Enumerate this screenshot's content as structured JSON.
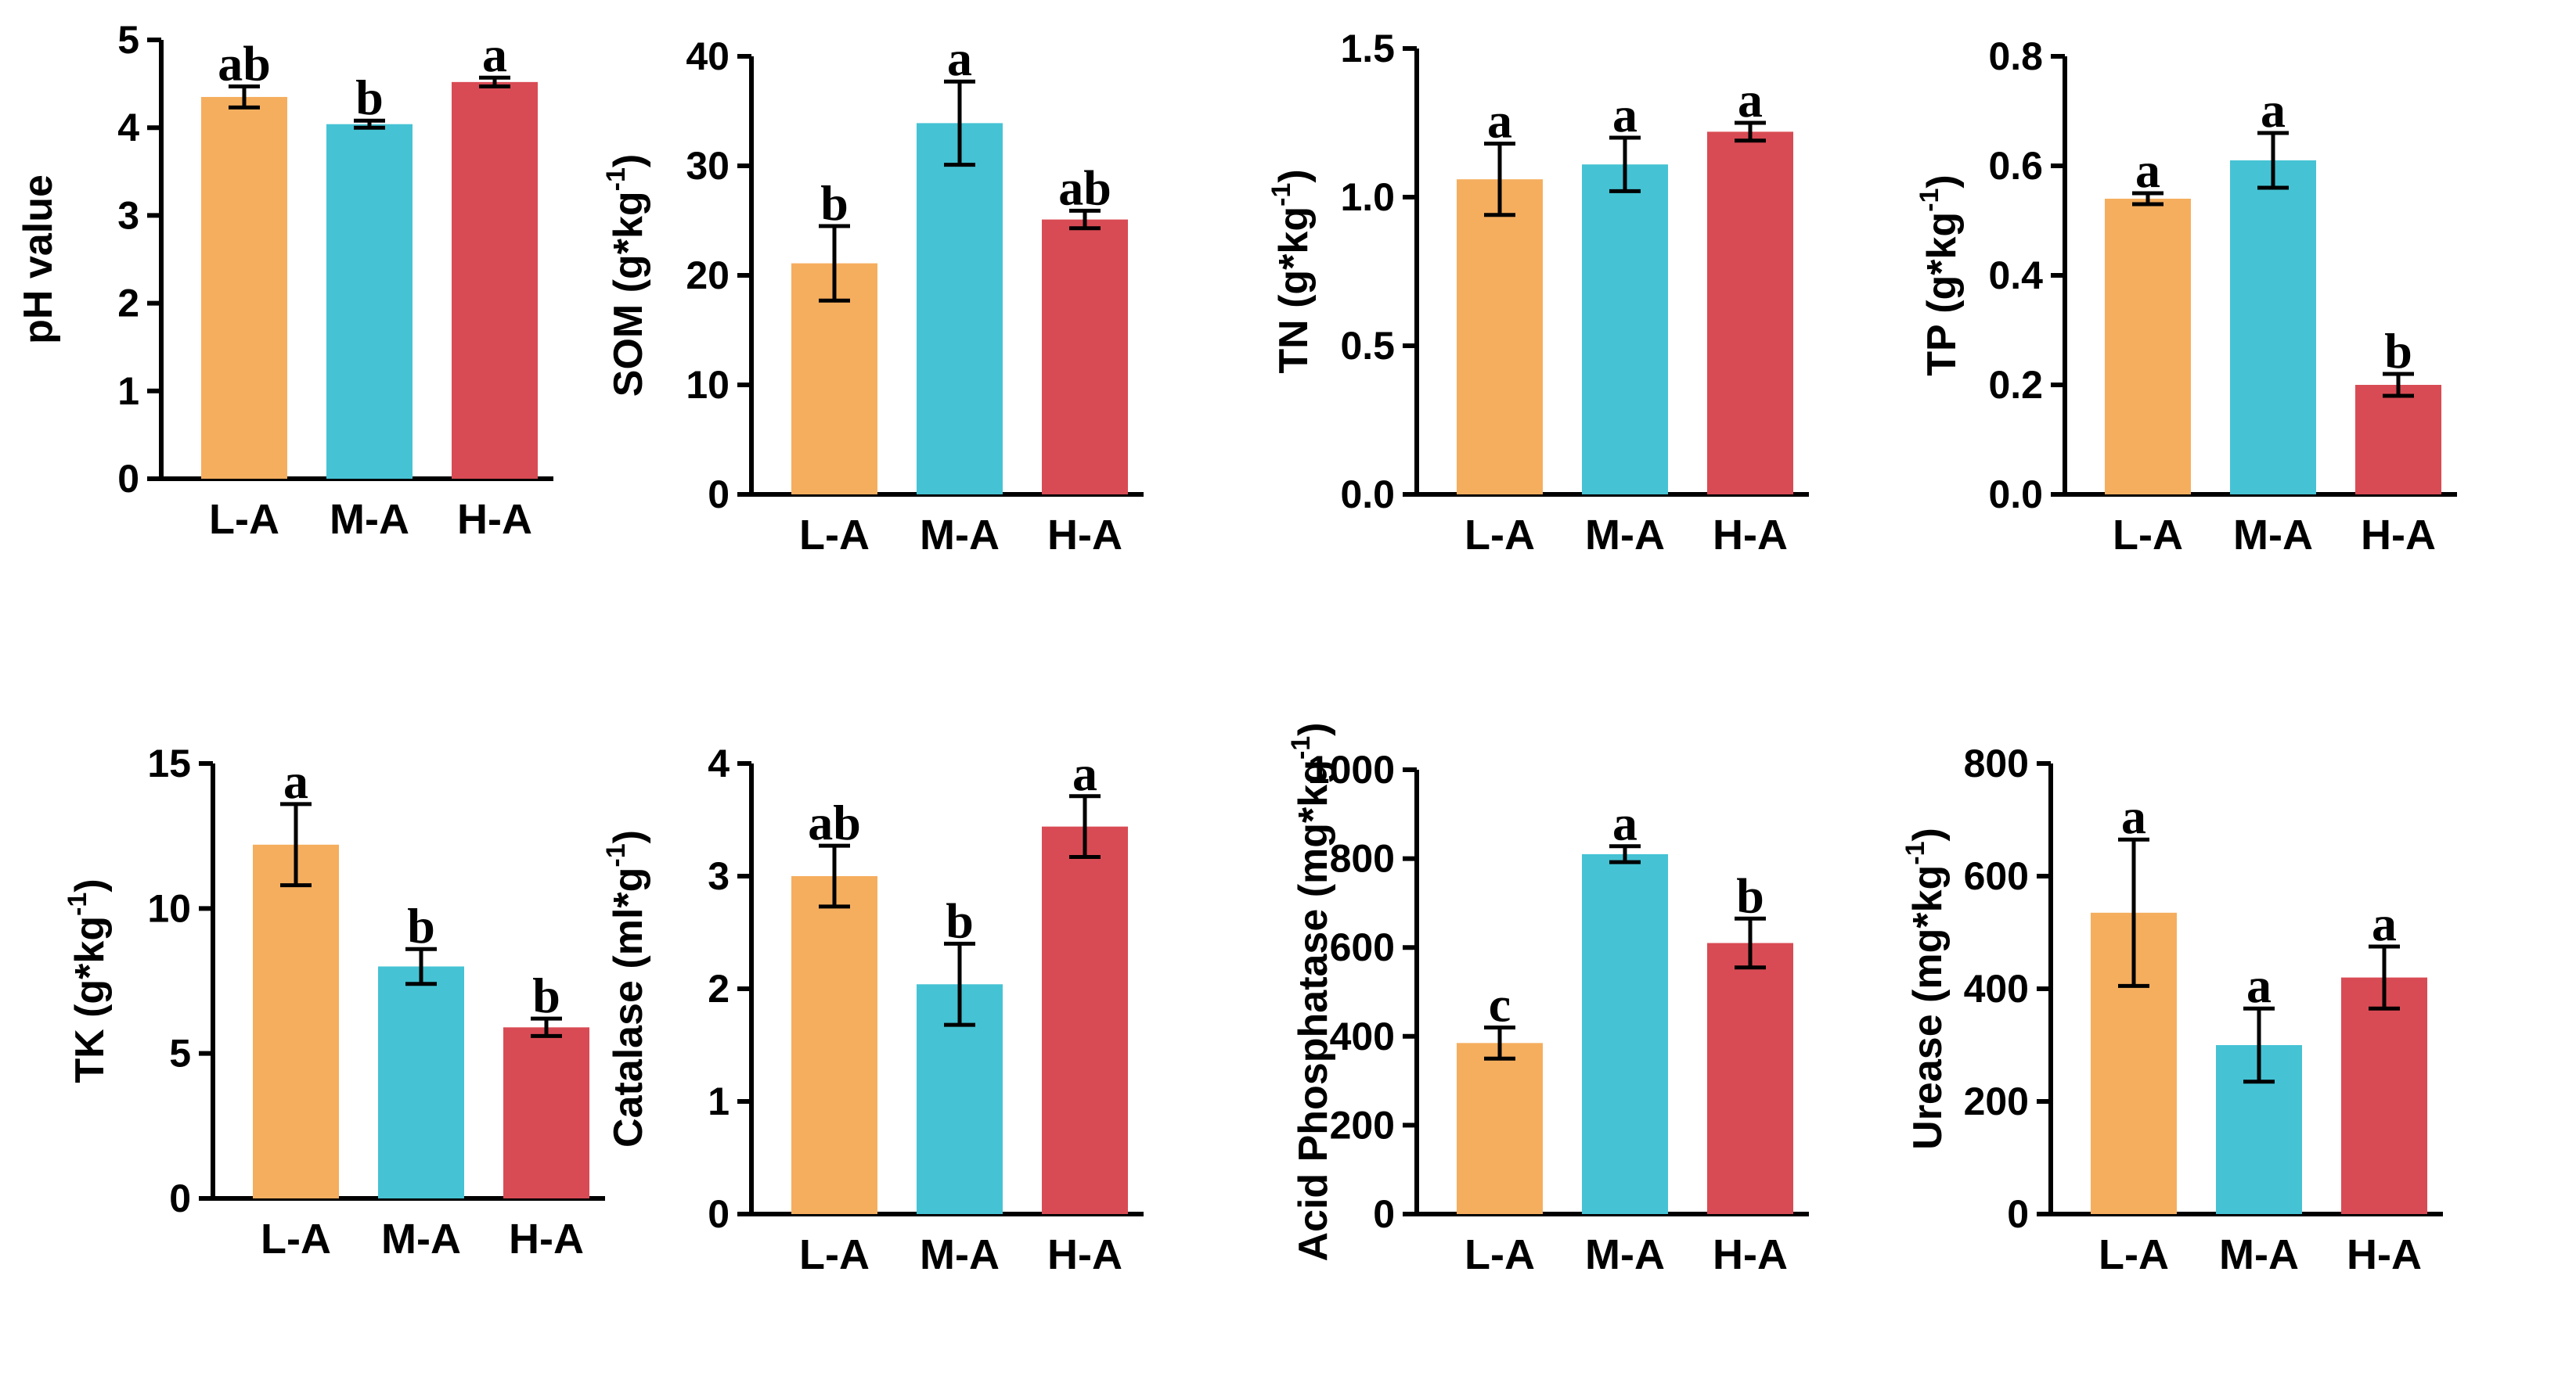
{
  "colors": {
    "L-A": "#f5ae5e",
    "M-A": "#45c3d4",
    "H-A": "#d94b54"
  },
  "chart_data": [
    {
      "type": "bar",
      "categories": [
        "L-A",
        "M-A",
        "H-A"
      ],
      "values": [
        4.35,
        4.04,
        4.52
      ],
      "errors": [
        0.12,
        0.04,
        0.05
      ],
      "letters": [
        "ab",
        "b",
        "a"
      ],
      "ylabel": "pH value",
      "ylim": [
        0,
        5
      ],
      "yticks": [
        "0",
        "1",
        "2",
        "3",
        "4",
        "5"
      ]
    },
    {
      "type": "bar",
      "categories": [
        "L-A",
        "M-A",
        "H-A"
      ],
      "values": [
        21.1,
        33.9,
        25.1
      ],
      "errors": [
        3.4,
        3.8,
        0.8
      ],
      "letters": [
        "b",
        "a",
        "ab"
      ],
      "ylabel": "SOM (g*kg",
      "ylabel_sup": "-1",
      "ylabel_end": ")",
      "ylim": [
        0,
        40
      ],
      "yticks": [
        "0",
        "10",
        "20",
        "30",
        "40"
      ]
    },
    {
      "type": "bar",
      "categories": [
        "L-A",
        "M-A",
        "H-A"
      ],
      "values": [
        1.06,
        1.11,
        1.22
      ],
      "errors": [
        0.12,
        0.09,
        0.03
      ],
      "letters": [
        "a",
        "a",
        "a"
      ],
      "ylabel": "TN (g*kg",
      "ylabel_sup": "-1",
      "ylabel_end": ")",
      "ylim": [
        0,
        1.5
      ],
      "yticks": [
        "0.0",
        "0.5",
        "1.0",
        "1.5"
      ]
    },
    {
      "type": "bar",
      "categories": [
        "L-A",
        "M-A",
        "H-A"
      ],
      "values": [
        0.54,
        0.61,
        0.2
      ],
      "errors": [
        0.01,
        0.05,
        0.02
      ],
      "letters": [
        "a",
        "a",
        "b"
      ],
      "ylabel": "TP (g*kg",
      "ylabel_sup": "-1",
      "ylabel_end": ")",
      "ylim": [
        0,
        0.8
      ],
      "yticks": [
        "0.0",
        "0.2",
        "0.4",
        "0.6",
        "0.8"
      ]
    },
    {
      "type": "bar",
      "categories": [
        "L-A",
        "M-A",
        "H-A"
      ],
      "values": [
        12.2,
        8.0,
        5.9
      ],
      "errors": [
        1.4,
        0.6,
        0.3
      ],
      "letters": [
        "a",
        "b",
        "b"
      ],
      "ylabel": "TK (g*kg",
      "ylabel_sup": "-1",
      "ylabel_end": ")",
      "ylim": [
        0,
        15
      ],
      "yticks": [
        "0",
        "5",
        "10",
        "15"
      ]
    },
    {
      "type": "bar",
      "categories": [
        "L-A",
        "M-A",
        "H-A"
      ],
      "values": [
        3.0,
        2.04,
        3.44
      ],
      "errors": [
        0.27,
        0.36,
        0.27
      ],
      "letters": [
        "ab",
        "b",
        "a"
      ],
      "ylabel": "Catalase (ml*g",
      "ylabel_sup": "-1",
      "ylabel_end": ")",
      "ylim": [
        0,
        4
      ],
      "yticks": [
        "0",
        "1",
        "2",
        "3",
        "4"
      ]
    },
    {
      "type": "bar",
      "categories": [
        "L-A",
        "M-A",
        "H-A"
      ],
      "values": [
        385,
        810,
        610
      ],
      "errors": [
        35,
        18,
        55
      ],
      "letters": [
        "c",
        "a",
        "b"
      ],
      "ylabel": "Acid Phosphatase (mg*kg",
      "ylabel_sup": "-1",
      "ylabel_end": ")",
      "ylim": [
        0,
        1000
      ],
      "yticks": [
        "0",
        "200",
        "400",
        "600",
        "800",
        "1000"
      ]
    },
    {
      "type": "bar",
      "categories": [
        "L-A",
        "M-A",
        "H-A"
      ],
      "values": [
        535,
        300,
        420
      ],
      "errors": [
        130,
        65,
        55
      ],
      "letters": [
        "a",
        "a",
        "a"
      ],
      "ylabel": "Urease (mg*kg",
      "ylabel_sup": "-1",
      "ylabel_end": ")",
      "ylim": [
        0,
        800
      ],
      "yticks": [
        "0",
        "200",
        "400",
        "600",
        "800"
      ]
    }
  ]
}
